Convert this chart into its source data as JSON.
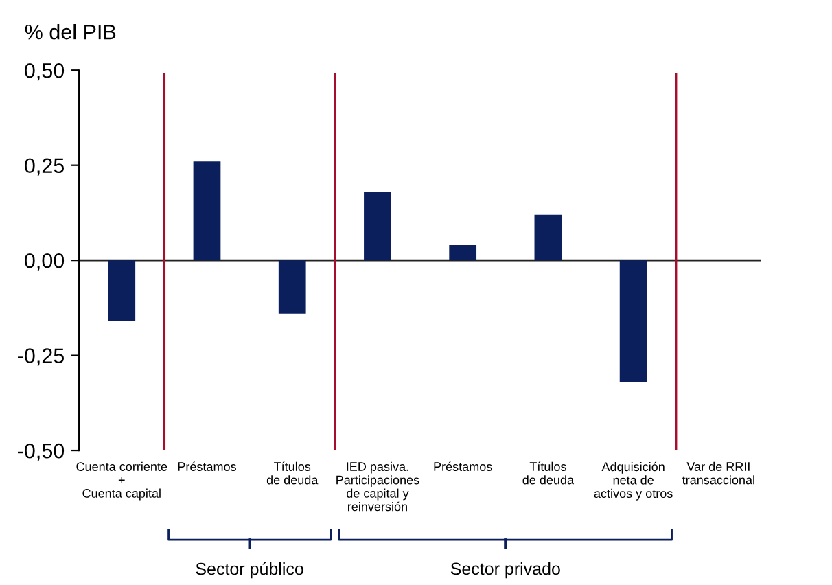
{
  "chart_data": {
    "type": "bar",
    "ylabel": "% del PIB",
    "categories": [
      "Cuenta corriente\n+\nCuenta capital",
      "Préstamos",
      "Títulos\nde deuda",
      "IED pasiva.\nParticipaciones\nde capital y\nreinversión",
      "Préstamos",
      "Títulos\nde deuda",
      "Adquisición\nneta de\nactivos y otros",
      "Var de RRII\ntransaccional"
    ],
    "values": [
      -0.16,
      0.26,
      -0.14,
      0.18,
      0.04,
      0.12,
      -0.32,
      null
    ],
    "color": "#0a1f5c",
    "ylim": [
      -0.5,
      0.5
    ],
    "yticks": [
      {
        "value": -0.5,
        "label": "-0,50"
      },
      {
        "value": -0.25,
        "label": "-0,25"
      },
      {
        "value": 0,
        "label": "0,00"
      },
      {
        "value": 0.25,
        "label": "0,25"
      },
      {
        "value": 0.5,
        "label": "0,50"
      }
    ],
    "annotations": [
      "Sector público",
      "Sector privado"
    ],
    "grid": false,
    "legend": false
  }
}
